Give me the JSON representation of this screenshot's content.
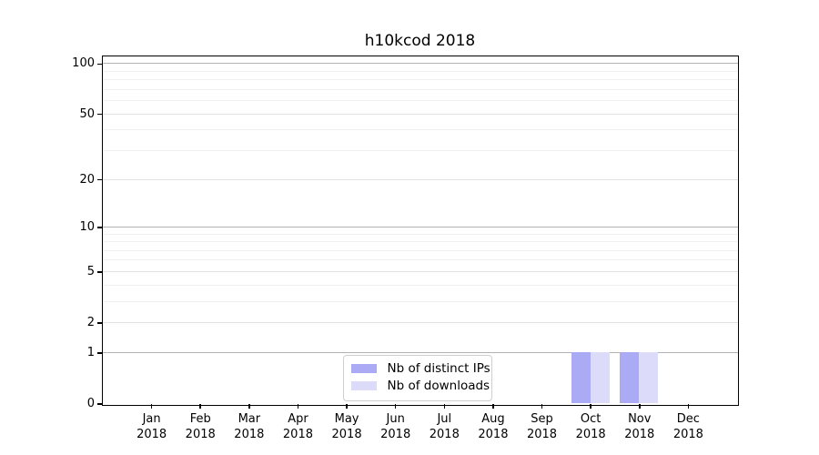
{
  "chart_data": {
    "type": "bar",
    "title": "h10kcod 2018",
    "categories": [
      "Jan",
      "Feb",
      "Mar",
      "Apr",
      "May",
      "Jun",
      "Jul",
      "Aug",
      "Sep",
      "Oct",
      "Nov",
      "Dec"
    ],
    "category_year": "2018",
    "series": [
      {
        "name": "Nb of distinct IPs",
        "color": "#aaaaf5",
        "values": [
          0,
          0,
          0,
          0,
          0,
          0,
          0,
          0,
          0,
          1,
          1,
          0
        ]
      },
      {
        "name": "Nb of downloads",
        "color": "#dcdcfa",
        "values": [
          0,
          0,
          0,
          0,
          0,
          0,
          0,
          0,
          0,
          1,
          1,
          0
        ]
      }
    ],
    "yscale": "log1p",
    "ylim": [
      0,
      111
    ],
    "yticks": [
      0,
      1,
      2,
      5,
      10,
      20,
      50,
      100
    ],
    "minor_gridlines": [
      3,
      4,
      6,
      7,
      8,
      9,
      30,
      40,
      60,
      70,
      80,
      90
    ],
    "grid": true,
    "legend_position": "lower-center-inside",
    "grid_colors": {
      "decade": "#b2b2b2",
      "labeled": "#e1e1e1",
      "minor": "#f0f0f0"
    }
  }
}
